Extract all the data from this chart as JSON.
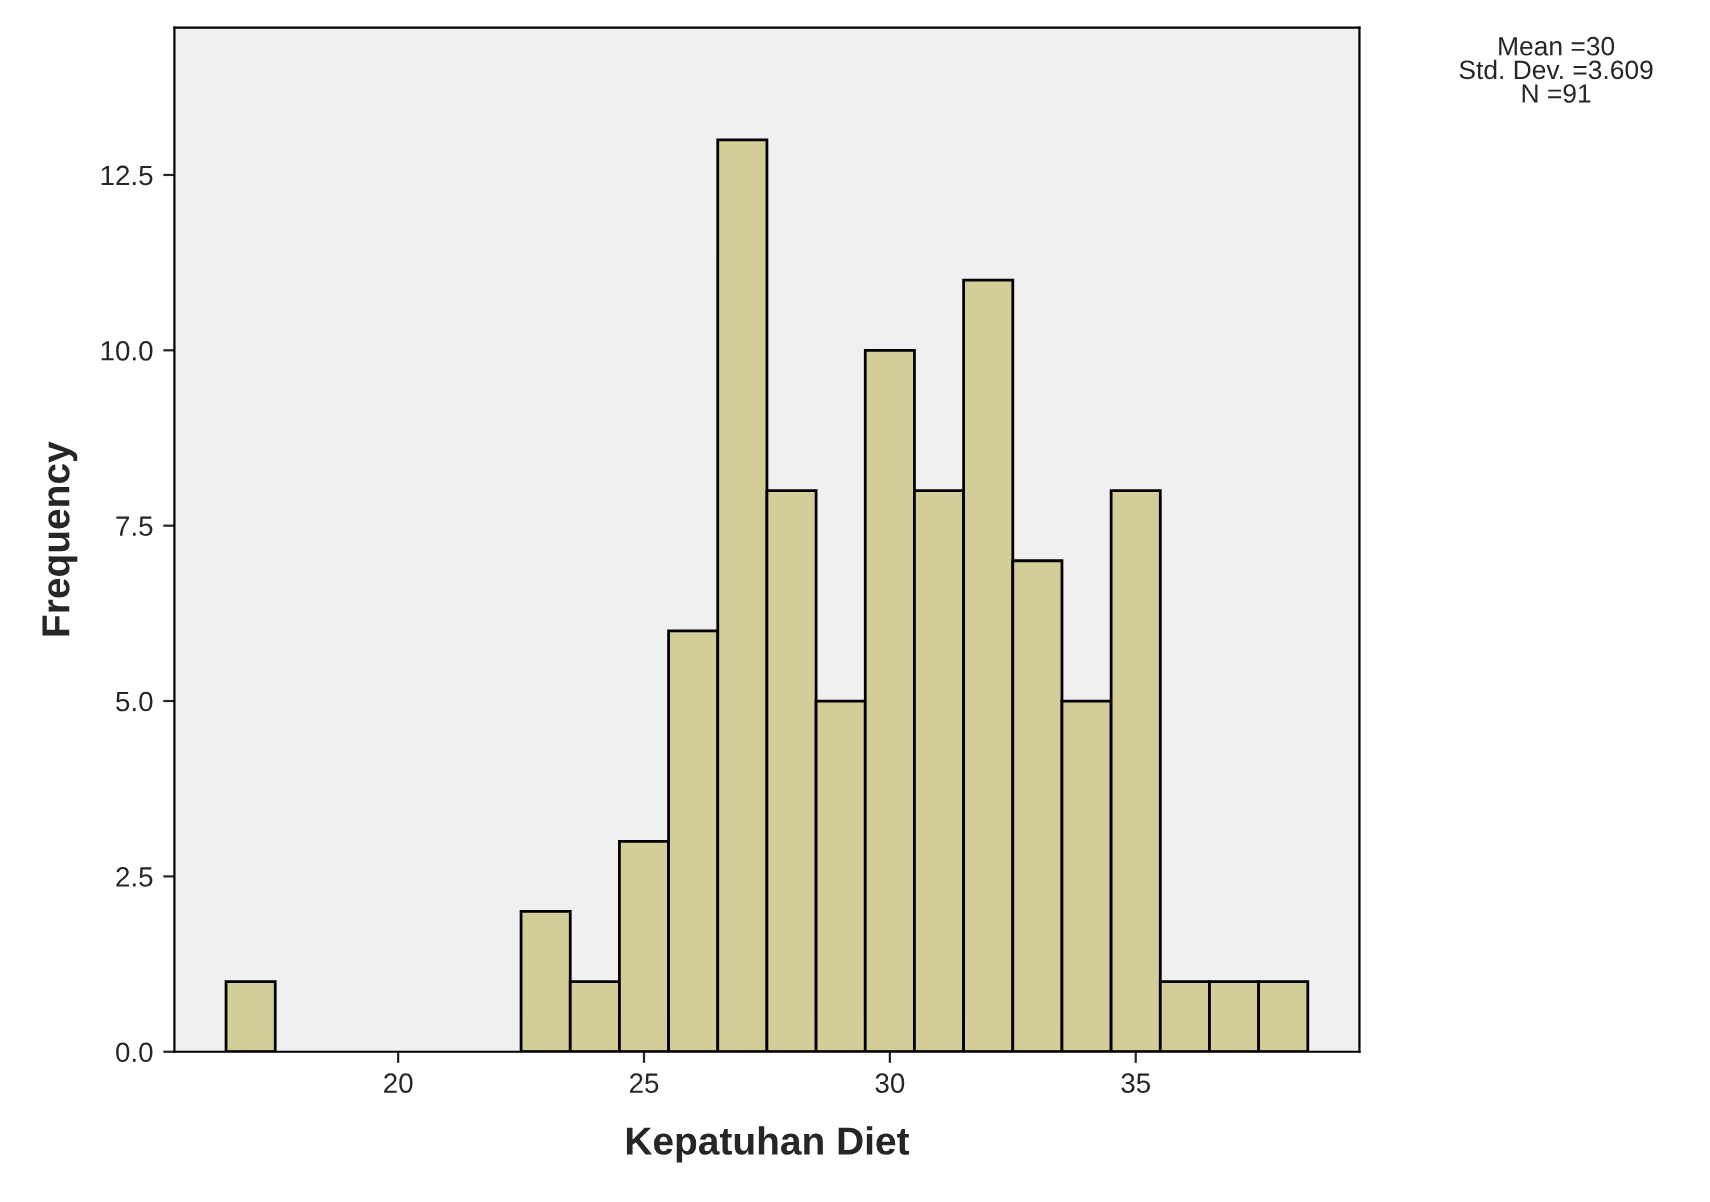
{
  "chart_data": {
    "type": "histogram",
    "xlabel": "Kepatuhan Diet",
    "ylabel": "Frequency",
    "bins": [
      16.5,
      17.5,
      18.5,
      19.5,
      20.5,
      21.5,
      22.5,
      23.5,
      24.5,
      25.5,
      26.5,
      27.5,
      28.5,
      29.5,
      30.5,
      31.5,
      32.5,
      33.5,
      34.5,
      35.5,
      36.5,
      37.5,
      38.5
    ],
    "values": [
      1,
      0,
      0,
      0,
      0,
      0,
      2,
      1,
      3,
      6,
      13,
      8,
      5,
      10,
      8,
      11,
      7,
      5,
      8,
      1,
      1,
      1
    ],
    "color": "#d3ce98",
    "xlim": [
      15.45,
      39.55
    ],
    "xticks": [
      20,
      25,
      30,
      35
    ],
    "ylim": [
      0,
      14.6
    ],
    "yticks": [
      {
        "value": 0,
        "label": "0.0"
      },
      {
        "value": 2.5,
        "label": "2.5"
      },
      {
        "value": 5,
        "label": "5.0"
      },
      {
        "value": 7.5,
        "label": "7.5"
      },
      {
        "value": 10,
        "label": "10.0"
      },
      {
        "value": 12.5,
        "label": "12.5"
      }
    ],
    "grid": false,
    "annotations": [
      "Mean =30\nStd. Dev. =3.609\nN =91"
    ]
  }
}
